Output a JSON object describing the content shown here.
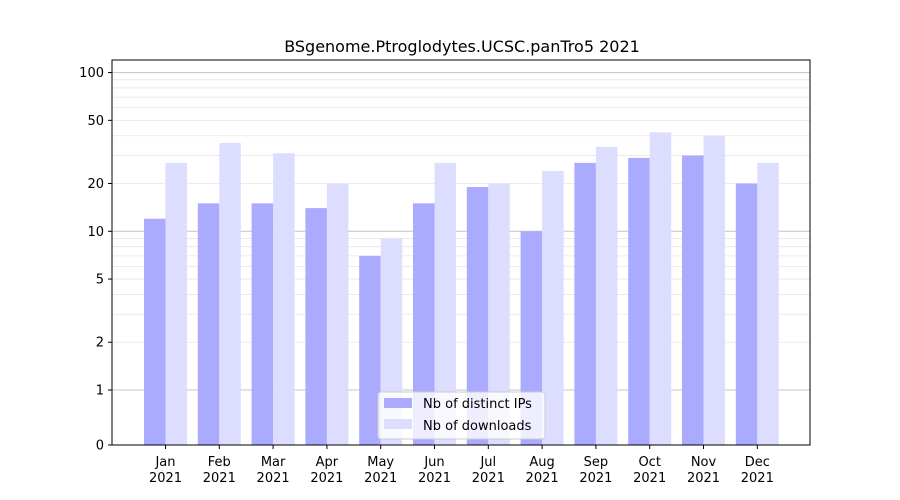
{
  "chart_data": {
    "type": "bar",
    "title": "BSgenome.Ptroglodytes.UCSC.panTro5 2021",
    "xlabel": "",
    "ylabel": "",
    "yscale": "symlog",
    "ylim": [
      0,
      120
    ],
    "yticks": [
      0,
      1,
      2,
      5,
      10,
      20,
      50,
      100
    ],
    "ytick_labels": [
      "0",
      "1",
      "2",
      "5",
      "10",
      "20",
      "50",
      "100"
    ],
    "categories": [
      "Jan\n2021",
      "Feb\n2021",
      "Mar\n2021",
      "Apr\n2021",
      "May\n2021",
      "Jun\n2021",
      "Jul\n2021",
      "Aug\n2021",
      "Sep\n2021",
      "Oct\n2021",
      "Nov\n2021",
      "Dec\n2021"
    ],
    "category_months": [
      "Jan",
      "Feb",
      "Mar",
      "Apr",
      "May",
      "Jun",
      "Jul",
      "Aug",
      "Sep",
      "Oct",
      "Nov",
      "Dec"
    ],
    "category_year": "2021",
    "series": [
      {
        "name": "Nb of distinct IPs",
        "color": "#aaaaff",
        "values": [
          12,
          15,
          15,
          14,
          7,
          15,
          19,
          10,
          27,
          29,
          30,
          20
        ]
      },
      {
        "name": "Nb of downloads",
        "color": "#ddddff",
        "values": [
          27,
          36,
          31,
          20,
          9,
          27,
          20,
          24,
          34,
          42,
          40,
          27
        ]
      }
    ],
    "grid": true,
    "legend": "lower-center"
  }
}
